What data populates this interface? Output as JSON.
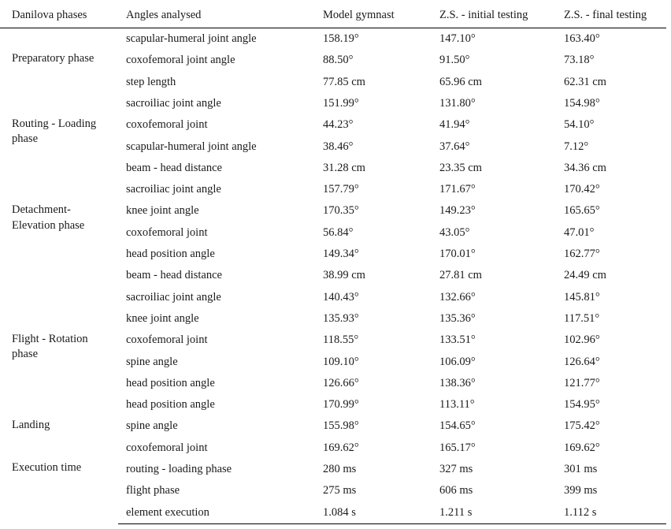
{
  "headers": {
    "phase": "Danilova phases",
    "angle": "Angles analysed",
    "model": "Model gymnast",
    "initial": "Z.S. - initial testing",
    "final": "Z.S. - final testing"
  },
  "phases": {
    "p1": "Preparatory phase",
    "p2a": "Routing - Loading",
    "p2b": "phase",
    "p3a": "Detachment-",
    "p3b": "Elevation phase",
    "p4a": "Flight - Rotation",
    "p4b": "phase",
    "p5": "Landing",
    "p6": "Execution time"
  },
  "rows": [
    {
      "angle": "scapular-humeral joint angle",
      "model": "158.19°",
      "initial": "147.10°",
      "final": "163.40°"
    },
    {
      "angle": "coxofemoral joint angle",
      "model": "88.50°",
      "initial": "91.50°",
      "final": "73.18°"
    },
    {
      "angle": "step length",
      "model": "77.85 cm",
      "initial": "65.96 cm",
      "final": "62.31 cm"
    },
    {
      "angle": "sacroiliac joint angle",
      "model": "151.99°",
      "initial": "131.80°",
      "final": "154.98°"
    },
    {
      "angle": "coxofemoral joint",
      "model": "44.23°",
      "initial": "41.94°",
      "final": "54.10°"
    },
    {
      "angle": "scapular-humeral joint angle",
      "model": "38.46°",
      "initial": "37.64°",
      "final": "7.12°"
    },
    {
      "angle": "beam - head distance",
      "model": "31.28 cm",
      "initial": "23.35 cm",
      "final": "34.36 cm"
    },
    {
      "angle": "sacroiliac joint angle",
      "model": "157.79°",
      "initial": "171.67°",
      "final": "170.42°"
    },
    {
      "angle": "knee joint angle",
      "model": "170.35°",
      "initial": "149.23°",
      "final": "165.65°"
    },
    {
      "angle": "coxofemoral joint",
      "model": "56.84°",
      "initial": "43.05°",
      "final": "47.01°"
    },
    {
      "angle": "head position angle",
      "model": "149.34°",
      "initial": "170.01°",
      "final": "162.77°"
    },
    {
      "angle": "beam - head distance",
      "model": "38.99 cm",
      "initial": "27.81 cm",
      "final": "24.49 cm"
    },
    {
      "angle": "sacroiliac joint angle",
      "model": "140.43°",
      "initial": "132.66°",
      "final": "145.81°"
    },
    {
      "angle": "knee joint angle",
      "model": "135.93°",
      "initial": "135.36°",
      "final": "117.51°"
    },
    {
      "angle": "coxofemoral joint",
      "model": "118.55°",
      "initial": "133.51°",
      "final": "102.96°"
    },
    {
      "angle": "spine angle",
      "model": "109.10°",
      "initial": "106.09°",
      "final": "126.64°"
    },
    {
      "angle": "head position angle",
      "model": "126.66°",
      "initial": "138.36°",
      "final": "121.77°"
    },
    {
      "angle": "head position angle",
      "model": "170.99°",
      "initial": "113.11°",
      "final": "154.95°"
    },
    {
      "angle": "spine angle",
      "model": "155.98°",
      "initial": "154.65°",
      "final": "175.42°"
    },
    {
      "angle": "coxofemoral joint",
      "model": "169.62°",
      "initial": "165.17°",
      "final": "169.62°"
    },
    {
      "angle": "routing - loading phase",
      "model": "280 ms",
      "initial": "327 ms",
      "final": "301 ms"
    },
    {
      "angle": "flight phase",
      "model": "275 ms",
      "initial": "606 ms",
      "final": "399 ms"
    },
    {
      "angle": "element execution",
      "model": "1.084 s",
      "initial": "1.211 s",
      "final": "1.112 s"
    }
  ]
}
